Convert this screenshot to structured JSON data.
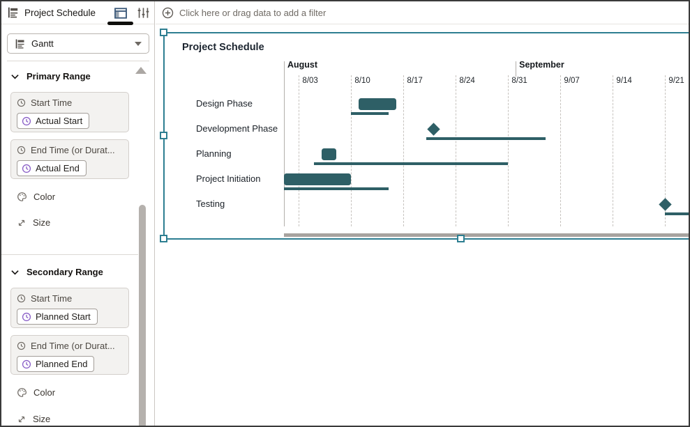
{
  "sidebar": {
    "title": "Project Schedule",
    "viz_type_label": "Gantt",
    "sections": [
      {
        "label": "Primary Range",
        "zones": [
          {
            "label": "Start Time",
            "pill": "Actual Start"
          },
          {
            "label": "End Time (or Durat...",
            "pill": "Actual End"
          }
        ],
        "color_label": "Color",
        "size_label": "Size"
      },
      {
        "label": "Secondary Range",
        "zones": [
          {
            "label": "Start Time",
            "pill": "Planned Start"
          },
          {
            "label": "End Time (or Durat...",
            "pill": "Planned End"
          }
        ],
        "color_label": "Color",
        "size_label": "Size"
      }
    ]
  },
  "filter_bar": {
    "placeholder": "Click here or drag data to add a filter"
  },
  "chart_data": {
    "type": "gantt",
    "title": "Project Schedule",
    "months": [
      {
        "label": "August",
        "start": "8/01"
      },
      {
        "label": "September",
        "start": "9/01"
      }
    ],
    "ticks": [
      "8/03",
      "8/10",
      "8/17",
      "8/24",
      "8/31",
      "9/07",
      "9/14",
      "9/21"
    ],
    "tasks": [
      {
        "label": "Design Phase",
        "actual_start": "8/11",
        "actual_end": "8/16",
        "planned_start": "8/10",
        "planned_end": "8/15",
        "milestone": false
      },
      {
        "label": "Development Phase",
        "actual_start": "8/21",
        "actual_end": "8/21",
        "planned_start": "8/20",
        "planned_end": "9/05",
        "milestone": true
      },
      {
        "label": "Planning",
        "actual_start": "8/06",
        "actual_end": "8/08",
        "planned_start": "8/05",
        "planned_end": "8/31",
        "milestone": false
      },
      {
        "label": "Project Initiation",
        "actual_start": "8/01",
        "actual_end": "8/10",
        "planned_start": "8/01",
        "planned_end": "8/15",
        "milestone": false
      },
      {
        "label": "Testing",
        "actual_start": "9/21",
        "actual_end": "9/21",
        "planned_start": "9/21",
        "planned_end": "9/26",
        "milestone": true
      }
    ],
    "colors": {
      "bar": "#2e5f66",
      "selection": "#2d7e91"
    }
  }
}
